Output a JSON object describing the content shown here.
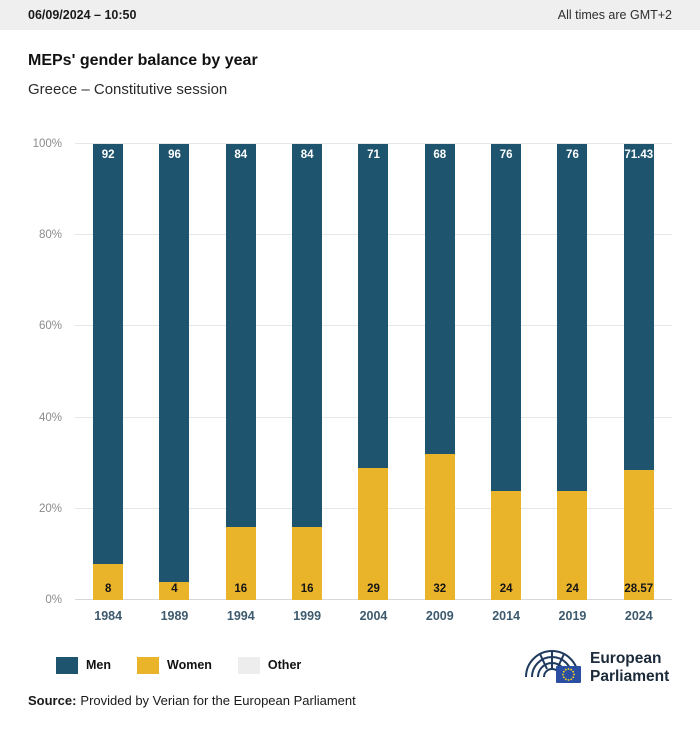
{
  "header": {
    "datetime": "06/09/2024 – 10:50",
    "timezone_note": "All times are GMT+2"
  },
  "title": "MEPs' gender balance by year",
  "subtitle": "Greece – Constitutive session",
  "chart_data": {
    "type": "bar",
    "stacked": true,
    "categories": [
      "1984",
      "1989",
      "1994",
      "1999",
      "2004",
      "2009",
      "2014",
      "2019",
      "2024"
    ],
    "series": [
      {
        "name": "Men",
        "color": "#1f546f",
        "values": [
          92,
          96,
          84,
          84,
          71,
          68,
          76,
          76,
          71.43
        ]
      },
      {
        "name": "Women",
        "color": "#e9b32a",
        "values": [
          8,
          4,
          16,
          16,
          29,
          32,
          24,
          24,
          28.57
        ]
      },
      {
        "name": "Other",
        "color": "#ededed",
        "values": [
          0,
          0,
          0,
          0,
          0,
          0,
          0,
          0,
          0
        ]
      }
    ],
    "ylabel": "",
    "ylim": [
      0,
      100
    ],
    "yticks": [
      "0%",
      "20%",
      "40%",
      "60%",
      "80%",
      "100%"
    ],
    "grid": true,
    "legend_position": "bottom",
    "bar_label_top_color": "#ffffff",
    "bar_label_bottom_color": "#161616"
  },
  "legend": {
    "items": [
      {
        "label": "Men",
        "color": "#1f546f"
      },
      {
        "label": "Women",
        "color": "#e9b32a"
      },
      {
        "label": "Other",
        "color": "#ededed"
      }
    ]
  },
  "footer": {
    "source_label": "Source:",
    "source_text": "Provided by Verian for the European Parliament"
  },
  "logo": {
    "line1": "European",
    "line2": "Parliament"
  }
}
